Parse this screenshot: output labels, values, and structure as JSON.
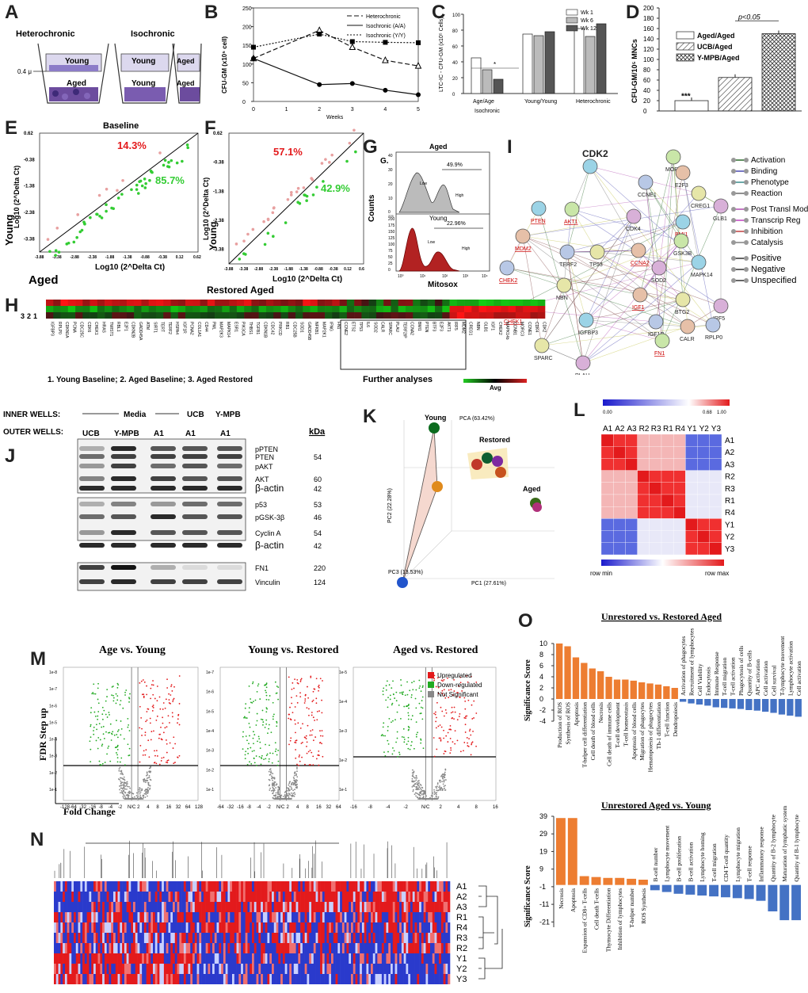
{
  "panels": [
    "A",
    "B",
    "C",
    "D",
    "E",
    "F",
    "G",
    "H",
    "I",
    "J",
    "K",
    "L",
    "M",
    "N",
    "O"
  ],
  "panelA": {
    "heterochronic": "Heterochronic",
    "isochronic": "Isochronic",
    "young": "Young",
    "aged": "Aged",
    "pore": "0.4 μ"
  },
  "chartB": {
    "type": "line",
    "ylabel": "CFU-GM (x10⁵ cell)",
    "xlabel": "Weeks",
    "x": [
      0,
      1,
      2,
      3,
      4,
      5
    ],
    "xticks": [
      "0",
      "1",
      "2",
      "3",
      "4",
      "5"
    ],
    "yticks": [
      "0",
      "50",
      "100",
      "150",
      "200",
      "250"
    ],
    "ylim": [
      0,
      250
    ],
    "series": [
      {
        "name": "Heterochronic",
        "x": [
          0,
          2,
          3,
          4,
          5
        ],
        "values": [
          115,
          190,
          145,
          110,
          95
        ]
      },
      {
        "name": "Isochronic (A/A)",
        "x": [
          0,
          2,
          3,
          4,
          5
        ],
        "values": [
          115,
          45,
          48,
          30,
          18
        ]
      },
      {
        "name": "Isochronic (Y/Y)",
        "x": [
          0,
          2,
          3,
          4,
          5
        ],
        "values": [
          145,
          180,
          160,
          158,
          157
        ]
      }
    ]
  },
  "chartC": {
    "type": "bar",
    "ylabel": "LTC-IC - CFU-GM (x10⁵ Cells)",
    "groups": [
      "Age/Age",
      "Young/Young",
      "Heterochronic"
    ],
    "subtitle": "Isochronic",
    "legend": [
      "Wk 1",
      "Wk 6",
      "Wk 12"
    ],
    "series": [
      {
        "name": "Wk 1",
        "values": [
          45,
          75,
          82
        ]
      },
      {
        "name": "Wk 6",
        "values": [
          30,
          73,
          72
        ]
      },
      {
        "name": "Wk 12",
        "values": [
          18,
          78,
          88
        ]
      }
    ],
    "ylim": [
      0,
      100
    ],
    "star": "*"
  },
  "chartD": {
    "type": "bar",
    "ylabel": "CFU-GM/10⁵ MNCs",
    "categories": [
      "Aged/Aged",
      "UCB/Aged",
      "Y-MPB/Aged"
    ],
    "values": [
      20,
      65,
      150
    ],
    "yticks": [
      "0",
      "20",
      "40",
      "60",
      "80",
      "100",
      "120",
      "140",
      "160",
      "180",
      "200"
    ],
    "ylim": [
      0,
      200
    ],
    "sig": "p<0.05",
    "star": "***"
  },
  "chartE": {
    "title": "Baseline",
    "pct_up": "14.3%",
    "pct_down": "85.7%",
    "xlabel": "Log10 (2^Delta Ct)",
    "ylabel": "Log10 (2^Delta Ct)",
    "ylab_side": "Young",
    "xlab_side": "Aged",
    "ticks": [
      "-3.88",
      "-3.38",
      "-2.88",
      "-2.38",
      "-1.88",
      "-1.38",
      "-0.88",
      "-0.38",
      "0.12",
      "0.62"
    ]
  },
  "chartF": {
    "pct_up": "57.1%",
    "pct_down": "42.9%",
    "xlabel": "Log10 (2^Delta Ct)",
    "ylabel": "Log10 (2^Delta Ct)",
    "ylab_side": "Young",
    "xlab_side": "Restored Aged",
    "ticks": [
      "-3.88",
      "-3.38",
      "-2.88",
      "-2.38",
      "-1.88",
      "-1.38",
      "-0.88",
      "-0.38",
      "0.12",
      "0.62"
    ]
  },
  "chartG": {
    "aged": "Aged",
    "young": "Young",
    "glabel": "G.",
    "aged_pct": "49.9%",
    "young_pct": "22.96%",
    "low": "Low",
    "high": "High",
    "ylabel": "Counts",
    "xlabel": "Mitosox",
    "yticks_top": [
      "0",
      "10",
      "20",
      "30",
      "40"
    ],
    "yticks_bot": [
      "0",
      "25",
      "50",
      "75",
      "100",
      "125",
      "150",
      "175",
      "200",
      "225"
    ],
    "xticks": [
      "10⁰",
      "10¹",
      "10²",
      "10³",
      "10⁴"
    ]
  },
  "panelH": {
    "rows": [
      "3",
      "2",
      "1"
    ],
    "genes": [
      "IGFBP3",
      "RPLP0",
      "CDKN1A",
      "PCNA",
      "CDC25C",
      "CDK6",
      "CHEK1",
      "HRAS",
      "TWIST1",
      "RBL1",
      "E2F1",
      "CDKN2B",
      "GADD45A",
      "ATM",
      "SIRT1",
      "TERT",
      "TERF2",
      "HSPA4",
      "IGF1R",
      "PCNA2",
      "COL1A1",
      "CD44",
      "PML",
      "MAP2K3",
      "MAPK14",
      "ESR1",
      "PIK3CA",
      "THBS1",
      "TGFB1",
      "CDKN1B",
      "CDC42",
      "PRKCD",
      "RB1",
      "CDC25B",
      "SOD1",
      "GADD45B",
      "NFKB1",
      "MAP2K1",
      "IFNG",
      "FN1",
      "CCNE2",
      "ETS2",
      "TP53",
      "IL6",
      "SOD2",
      "CALR",
      "SPARC",
      "PLAU",
      "TERF2IP",
      "CCNA2",
      "BMI1",
      "PTEN",
      "BTF3",
      "E2F3",
      "AKT1",
      "IRF5",
      "MDM2",
      "CREG1",
      "NBN",
      "GLB1",
      "IGF1",
      "CHEK2",
      "MAPK14b",
      "CCNB1",
      "MORC3",
      "CCNE1",
      "CDK4",
      "CDK2"
    ],
    "legend": "1. Young Baseline; 2. Aged Baseline; 3. Aged Restored",
    "further": "Further analyses",
    "avg": "Avg"
  },
  "panelI": {
    "nodes": [
      "CDK2",
      "MORC3",
      "E2F3",
      "CCNE1",
      "CREG1",
      "GLB1",
      "PTEN",
      "AKT1",
      "MDM2",
      "TERF2",
      "TP53",
      "CDK4",
      "BMI1",
      "GSK3B",
      "CCNA2",
      "CHEK2",
      "NBN",
      "SOD2",
      "MAPK14",
      "CHEK1",
      "IGF1",
      "IGF1R",
      "BTG2",
      "IRF5",
      "IGFBP3",
      "FN1",
      "CALR",
      "RPLP0",
      "SPARC",
      "PLAU"
    ],
    "legend": [
      "Activation",
      "Binding",
      "Phenotype",
      "Reaction",
      "Post Transl Mod",
      "Transcrip Reg",
      "Inhibition",
      "Catalysis",
      "Positive",
      "Negative",
      "Unspecified"
    ]
  },
  "panelJ": {
    "inner": "INNER WELLS:",
    "outer": "OUTER WELLS:",
    "media": "Media",
    "ucb": "UCB",
    "ympb": "Y-MPB",
    "lanes": [
      "UCB",
      "Y-MPB",
      "A1",
      "A1",
      "A1"
    ],
    "kda": "kDa",
    "bands": [
      {
        "name": "pPTEN",
        "kda": ""
      },
      {
        "name": "PTEN",
        "kda": "54"
      },
      {
        "name": "pAKT",
        "kda": ""
      },
      {
        "name": "AKT",
        "kda": "60"
      },
      {
        "name": "β-actin",
        "kda": "42"
      },
      {
        "name": "p53",
        "kda": "53"
      },
      {
        "name": "pGSK-3β",
        "kda": "46"
      },
      {
        "name": "Cyclin A",
        "kda": "54"
      },
      {
        "name": "β-actin",
        "kda": "42"
      },
      {
        "name": "FN1",
        "kda": "220"
      },
      {
        "name": "Vinculin",
        "kda": "124"
      }
    ]
  },
  "panelK": {
    "pca": "PCA (63.42%)",
    "young": "Young",
    "restored": "Restored",
    "aged": "Aged",
    "pc1": "PC1 (27.61%)",
    "pc2": "PC2 (22.28%)",
    "pc3": "PC3 (13.53%)"
  },
  "panelL": {
    "scale_min": "0.00",
    "scale_mid": "0.68",
    "scale_max": "1.00",
    "cols": [
      "A1",
      "A2",
      "A3",
      "R2",
      "R3",
      "R1",
      "R4",
      "Y1",
      "Y2",
      "Y3"
    ],
    "rows": [
      "A1",
      "A2",
      "A3",
      "R2",
      "R3",
      "R1",
      "R4",
      "Y1",
      "Y2",
      "Y3"
    ],
    "row_min": "row min",
    "row_max": "row max"
  },
  "panelM": {
    "titles": [
      "Age vs. Young",
      "Young vs. Restored",
      "Aged vs. Restored"
    ],
    "legend": [
      "Upregulated",
      "Down-regulated",
      "Not Significant"
    ],
    "ylabel": "FDR Step up",
    "xlabel": "Fold Change",
    "xt1": [
      "-128",
      "-64",
      "-32",
      "-16",
      "-8",
      "-4",
      "-2",
      "N/C",
      "2",
      "4",
      "8",
      "16",
      "32",
      "64",
      "128"
    ],
    "xt2": [
      "-64",
      "-32",
      "-16",
      "-8",
      "-4",
      "-2",
      "N/C",
      "2",
      "4",
      "8",
      "16",
      "32",
      "64"
    ],
    "xt3": [
      "-16",
      "-8",
      "-4",
      "-2",
      "N/C",
      "2",
      "4",
      "8",
      "16"
    ],
    "yt1": [
      "1e-8",
      "1e-7",
      "1e-6",
      "1e-5",
      "1e-4",
      "1e-3",
      "1e-2",
      "1e-1"
    ],
    "yt2": [
      "1e-7",
      "1e-6",
      "1e-5",
      "1e-4",
      "1e-3",
      "1e-2",
      "1e-1"
    ],
    "yt3": [
      "1e-5",
      "1e-4",
      "1e-3",
      "1e-2",
      "1e-1"
    ]
  },
  "panelN": {
    "rows": [
      "A1",
      "A2",
      "A3",
      "R1",
      "R4",
      "R3",
      "R2",
      "Y1",
      "Y2",
      "Y3"
    ]
  },
  "chartO1": {
    "type": "bar",
    "title": "Unrestored vs. Restored Aged",
    "ylabel": "Significance Score",
    "yticks": [
      "10",
      "8",
      "6",
      "4",
      "2",
      "0",
      "-2",
      "-4"
    ],
    "ylim": [
      -4,
      10
    ],
    "categories": [
      "Production of ROS",
      "Synthesis of ROS",
      "Apoptosis",
      "T-helper cell differentiation",
      "Cell death of blood cells",
      "Necrosis",
      "Cell death of immune cells",
      "T-cell development",
      "T-cell homeostasis",
      "Apoptosis of blood cells",
      "Migration of phagocytes",
      "Hematopoiesis of phagocytes",
      "Th-1 differentiation",
      "T-cell function",
      "Dendropoiesis",
      "Activation of phagocytes",
      "Recruitment of lymphocytes",
      "Cell Viability",
      "Endocytosis",
      "Immune Response",
      "T-cell migration",
      "T-cell activation",
      "Phagocytosis of cells",
      "Quantity of B-cells",
      "APC activation",
      "Cell activation",
      "Cell survival",
      "T-lymphocyte movement",
      "Lymphocyte activation",
      "Cell activation"
    ],
    "values": [
      10,
      9.5,
      7.5,
      6.5,
      5.5,
      5,
      4,
      3.5,
      3.5,
      3.3,
      3,
      2.8,
      2.6,
      2.3,
      2,
      -0.5,
      -0.8,
      -1,
      -1.2,
      -1.5,
      -1.6,
      -1.7,
      -1.8,
      -2,
      -2.1,
      -2.3,
      -2.5,
      -2.8,
      -3,
      -3.2
    ]
  },
  "chartO2": {
    "type": "bar",
    "title": "Unrestored Aged vs. Young",
    "ylabel": "Significance Score",
    "yticks": [
      "39",
      "29",
      "19",
      "9",
      "-1",
      "-11",
      "-21"
    ],
    "ylim": [
      -24,
      39
    ],
    "categories": [
      "Necrosis",
      "Apoptosis",
      "Expansion of CD8+ T-cells",
      "Cell death T-cells",
      "Thymocyte Differentiation",
      "Inhibition of lymphocytes",
      "T-helper number",
      "ROS Synthesis",
      "B-cell number",
      "Lymphocyte movement",
      "B-cell proliferation",
      "B-cell activation",
      "Lymphocyte homing",
      "T-cell migration",
      "CD4 T-cell quantity",
      "Lymphocyte migration",
      "T-cell response",
      "Inflammatory response",
      "Quantity of B-2 lymphocyte",
      "Maturation of lymphatic system",
      "Quantity of B-1 lymphocyte"
    ],
    "values": [
      38,
      38,
      5,
      4.5,
      4,
      4,
      3.5,
      3,
      -3,
      -4,
      -5,
      -5.5,
      -6,
      -6.5,
      -7,
      -7.5,
      -8,
      -9,
      -15,
      -20,
      -20
    ]
  }
}
